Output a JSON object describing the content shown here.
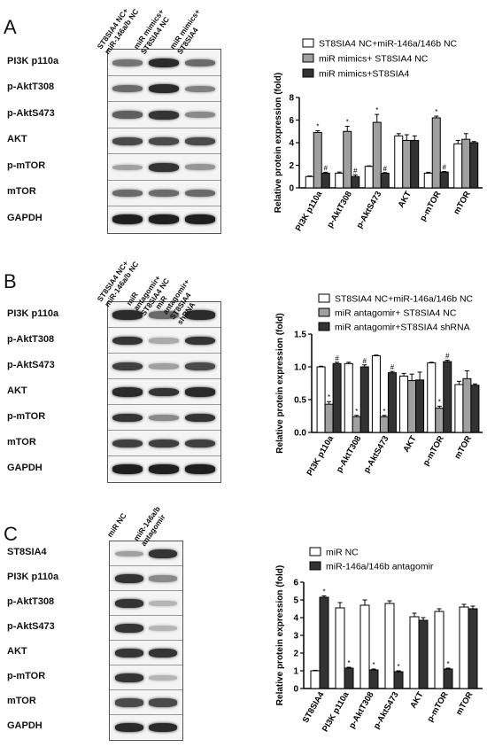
{
  "panels": [
    {
      "letter": "A",
      "blot": {
        "columns": [
          "ST8SIA4 NC+ miR-146a/b NC",
          "miR mimics+ ST8SIA4 NC",
          "miR mimics+ ST8SIA4"
        ],
        "rows": [
          {
            "label": "PI3K p110a",
            "intensity": [
              0.55,
              0.9,
              0.6
            ]
          },
          {
            "label": "p-AktT308",
            "intensity": [
              0.6,
              0.9,
              0.5
            ]
          },
          {
            "label": "p-AktS473",
            "intensity": [
              0.65,
              0.85,
              0.45
            ]
          },
          {
            "label": "AKT",
            "intensity": [
              0.75,
              0.75,
              0.75
            ]
          },
          {
            "label": "p-mTOR",
            "intensity": [
              0.35,
              0.85,
              0.4
            ]
          },
          {
            "label": "mTOR",
            "intensity": [
              0.6,
              0.6,
              0.6
            ]
          },
          {
            "label": "GAPDH",
            "intensity": [
              0.95,
              0.95,
              0.95
            ]
          }
        ]
      }
    },
    {
      "letter": "B",
      "blot": {
        "columns": [
          "ST8SIA4 NC+ miR-146a/b NC",
          "miR antagomir+ ST8SIA4 NC",
          "miR antagomir+ ST8SIA4 shRNA"
        ],
        "rows": [
          {
            "label": "PI3K p110a",
            "intensity": [
              0.9,
              0.6,
              0.9
            ]
          },
          {
            "label": "p-AktT308",
            "intensity": [
              0.85,
              0.3,
              0.85
            ]
          },
          {
            "label": "p-AktS473",
            "intensity": [
              0.8,
              0.35,
              0.75
            ]
          },
          {
            "label": "AKT",
            "intensity": [
              0.9,
              0.85,
              0.9
            ]
          },
          {
            "label": "p-mTOR",
            "intensity": [
              0.85,
              0.45,
              0.85
            ]
          },
          {
            "label": "mTOR",
            "intensity": [
              0.8,
              0.8,
              0.8
            ]
          },
          {
            "label": "GAPDH",
            "intensity": [
              0.95,
              0.95,
              0.95
            ]
          }
        ]
      }
    },
    {
      "letter": "C",
      "blot": {
        "columns": [
          "miR NC",
          "miR-146a/b antagomir"
        ],
        "rows": [
          {
            "label": "ST8SIA4",
            "intensity": [
              0.35,
              0.85
            ]
          },
          {
            "label": "PI3K p110a",
            "intensity": [
              0.85,
              0.45
            ]
          },
          {
            "label": "p-AktT308",
            "intensity": [
              0.85,
              0.25
            ]
          },
          {
            "label": "p-AktS473",
            "intensity": [
              0.85,
              0.25
            ]
          },
          {
            "label": "AKT",
            "intensity": [
              0.85,
              0.85
            ]
          },
          {
            "label": "p-mTOR",
            "intensity": [
              0.85,
              0.25
            ]
          },
          {
            "label": "mTOR",
            "intensity": [
              0.75,
              0.75
            ]
          },
          {
            "label": "GAPDH",
            "intensity": [
              0.9,
              0.9
            ]
          }
        ]
      }
    }
  ],
  "chart_data": [
    {
      "type": "bar",
      "panel": "A",
      "ylabel": "Relative protein expression (fold)",
      "ylim": [
        0,
        8
      ],
      "yticks": [
        0,
        2,
        4,
        6,
        8
      ],
      "categories": [
        "PI3K p110a",
        "p-AktT308",
        "p-AktS473",
        "AKT",
        "p-mTOR",
        "mTOR"
      ],
      "series": [
        {
          "name": "ST8SIA4 NC+miR-146a/146b NC",
          "color": "#ffffff",
          "values": [
            1.0,
            1.3,
            1.9,
            4.6,
            1.3,
            3.9
          ],
          "errors": [
            0.05,
            0.1,
            0.05,
            0.2,
            0.08,
            0.3
          ],
          "marks": [
            "",
            "",
            "",
            "",
            "",
            ""
          ]
        },
        {
          "name": "miR mimics+ ST8SIA4 NC",
          "color": "#a0a0a0",
          "values": [
            4.9,
            5.0,
            5.8,
            4.2,
            6.2,
            4.3
          ],
          "errors": [
            0.15,
            0.45,
            0.7,
            0.5,
            0.15,
            0.5
          ],
          "marks": [
            "*",
            "*",
            "*",
            "",
            "*",
            ""
          ]
        },
        {
          "name": "miR mimics+ST8SIA4",
          "color": "#333333",
          "values": [
            1.3,
            1.0,
            1.3,
            4.2,
            1.4,
            4.0
          ],
          "errors": [
            0.08,
            0.15,
            0.05,
            0.4,
            0.05,
            0.1
          ],
          "marks": [
            "#",
            "#",
            "#",
            "",
            "#",
            ""
          ]
        }
      ]
    },
    {
      "type": "bar",
      "panel": "B",
      "ylabel": "Relative protein expression (fold)",
      "ylim": [
        0,
        1.5
      ],
      "yticks": [
        0.0,
        0.5,
        1.0,
        1.5
      ],
      "categories": [
        "PI3K p110a",
        "p-AktT308",
        "p-AktS473",
        "AKT",
        "p-mTOR",
        "mTOR"
      ],
      "series": [
        {
          "name": "ST8SIA4 NC+miR-146a/146b NC",
          "color": "#ffffff",
          "values": [
            1.0,
            1.05,
            1.17,
            0.86,
            1.06,
            0.73
          ],
          "errors": [
            0.01,
            0.02,
            0.01,
            0.04,
            0.01,
            0.05
          ],
          "marks": [
            "",
            "",
            "",
            "",
            "",
            ""
          ]
        },
        {
          "name": "miR antagomir+ ST8SIA4 NC",
          "color": "#a0a0a0",
          "values": [
            0.43,
            0.24,
            0.24,
            0.79,
            0.37,
            0.82
          ],
          "errors": [
            0.04,
            0.02,
            0.02,
            0.1,
            0.03,
            0.12
          ],
          "marks": [
            "*",
            "*",
            "*",
            "",
            "*",
            ""
          ]
        },
        {
          "name": "miR antagomir+ST8SIA4 shRNA",
          "color": "#333333",
          "values": [
            1.05,
            1.0,
            0.91,
            0.8,
            1.08,
            0.72
          ],
          "errors": [
            0.02,
            0.03,
            0.02,
            0.12,
            0.02,
            0.02
          ],
          "marks": [
            "#",
            "#",
            "#",
            "",
            "#",
            ""
          ]
        }
      ]
    },
    {
      "type": "bar",
      "panel": "C",
      "ylabel": "Relative protein expression (fold)",
      "ylim": [
        0,
        6
      ],
      "yticks": [
        0,
        1,
        2,
        3,
        4,
        5,
        6
      ],
      "categories": [
        "ST8SIA4",
        "PI3K p110a",
        "p-AktT308",
        "p-AktS473",
        "AKT",
        "p-mTOR",
        "mTOR"
      ],
      "series": [
        {
          "name": "miR NC",
          "color": "#ffffff",
          "values": [
            1.0,
            4.55,
            4.7,
            4.8,
            4.05,
            4.35,
            4.6
          ],
          "errors": [
            0.03,
            0.3,
            0.3,
            0.15,
            0.2,
            0.15,
            0.15
          ],
          "marks": [
            "",
            "",
            "",
            "",
            "",
            "",
            ""
          ]
        },
        {
          "name": "miR-146a/146b antagomir",
          "color": "#333333",
          "values": [
            5.15,
            1.15,
            1.05,
            0.95,
            3.85,
            1.1,
            4.5
          ],
          "errors": [
            0.08,
            0.05,
            0.05,
            0.05,
            0.15,
            0.05,
            0.15
          ],
          "marks": [
            "*",
            "*",
            "*",
            "*",
            "",
            "*",
            ""
          ]
        }
      ]
    }
  ]
}
